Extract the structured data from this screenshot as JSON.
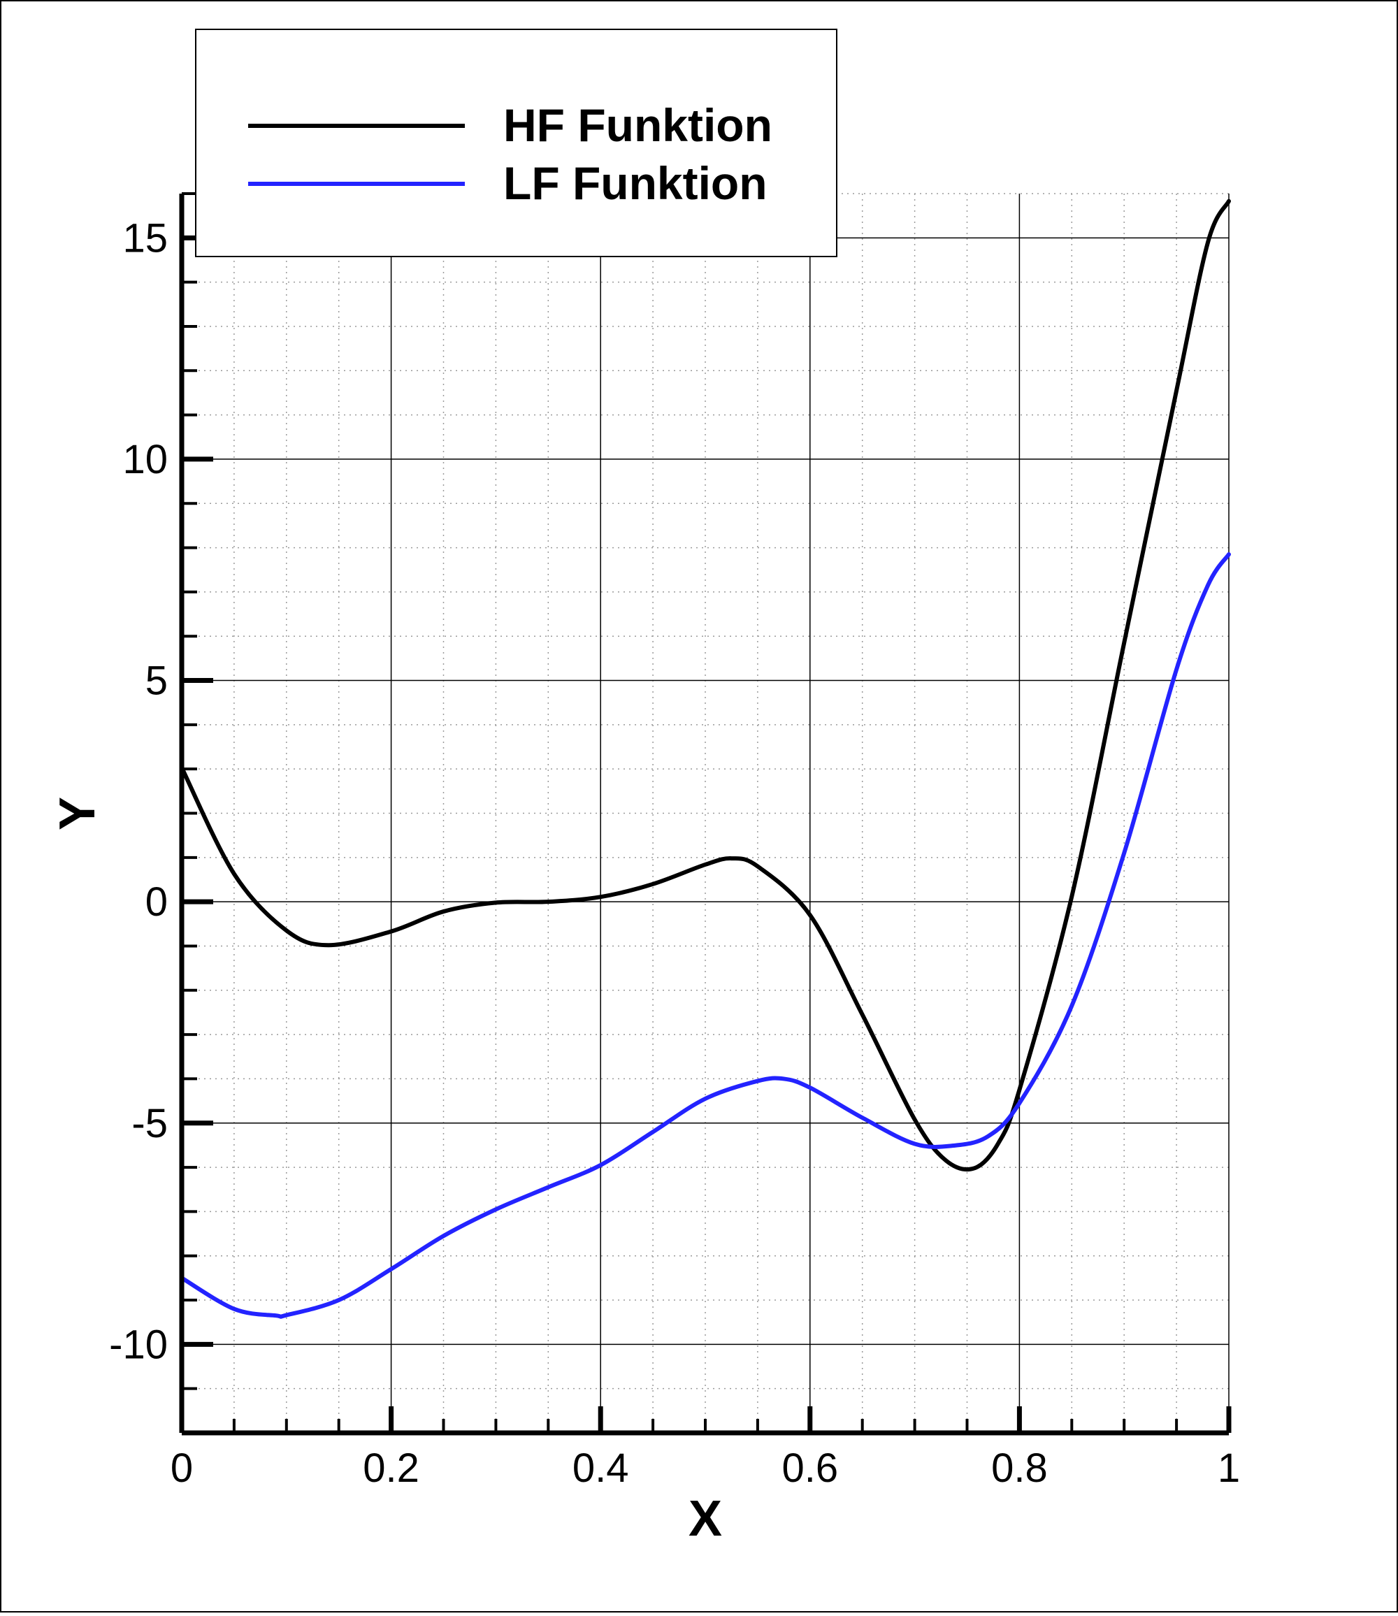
{
  "chart_data": {
    "type": "line",
    "title": "",
    "xlabel": "X",
    "ylabel": "Y",
    "xlim": [
      0,
      1
    ],
    "ylim": [
      -12,
      16
    ],
    "xticks": [
      0,
      0.2,
      0.4,
      0.6,
      0.8,
      1
    ],
    "xtick_labels": [
      "0",
      "0.2",
      "0.4",
      "0.6",
      "0.8",
      "1"
    ],
    "yticks": [
      -10,
      -5,
      0,
      5,
      10,
      15
    ],
    "ytick_labels": [
      "-10",
      "-5",
      "0",
      "5",
      "10",
      "15"
    ],
    "grid": true,
    "legend_position": "top-left",
    "series": [
      {
        "name": "HF Funktion",
        "color": "#000000",
        "x": [
          0,
          0.05,
          0.1,
          0.14,
          0.2,
          0.25,
          0.3,
          0.35,
          0.4,
          0.45,
          0.5,
          0.525,
          0.55,
          0.6,
          0.65,
          0.7,
          0.73,
          0.757,
          0.78,
          0.8,
          0.85,
          0.9,
          0.95,
          0.98,
          1.0
        ],
        "y": [
          3.03,
          0.63,
          -0.65,
          -0.98,
          -0.67,
          -0.22,
          -0.02,
          0.0,
          0.11,
          0.4,
          0.84,
          0.98,
          0.8,
          -0.3,
          -2.55,
          -4.92,
          -5.85,
          -6.02,
          -5.45,
          -4.25,
          0.12,
          5.85,
          11.55,
          14.9,
          15.83
        ]
      },
      {
        "name": "LF Funktion",
        "color": "#2323ff",
        "x": [
          0,
          0.05,
          0.09,
          0.1,
          0.15,
          0.2,
          0.25,
          0.3,
          0.35,
          0.4,
          0.45,
          0.5,
          0.55,
          0.575,
          0.6,
          0.65,
          0.7,
          0.737,
          0.77,
          0.8,
          0.85,
          0.9,
          0.95,
          0.98,
          1.0
        ],
        "y": [
          -8.5,
          -9.2,
          -9.35,
          -9.34,
          -9.0,
          -8.3,
          -7.55,
          -6.95,
          -6.45,
          -5.95,
          -5.2,
          -4.45,
          -4.05,
          -4.0,
          -4.2,
          -4.88,
          -5.47,
          -5.51,
          -5.3,
          -4.55,
          -2.35,
          1.1,
          5.25,
          7.15,
          7.85
        ]
      }
    ]
  }
}
